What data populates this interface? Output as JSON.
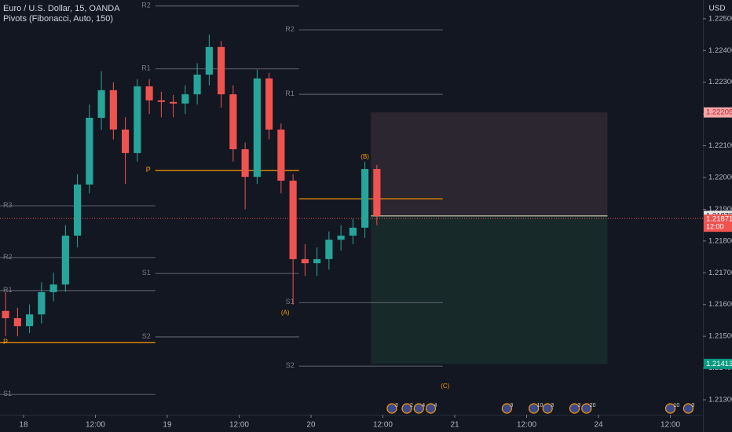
{
  "header": {
    "title": "Euro / U.S. Dollar, 15, OANDA",
    "indicator": "Pivots (Fibonacci, Auto, 150)",
    "currency": "USD"
  },
  "chart_data": {
    "type": "candlestick",
    "x": [
      -3,
      -1,
      1,
      3,
      5,
      7,
      9,
      11,
      13,
      15,
      17,
      19,
      21,
      23,
      25,
      27,
      29,
      31,
      33,
      35,
      37,
      39,
      41,
      43,
      45,
      47,
      49,
      51,
      53,
      55,
      57,
      59
    ],
    "open": [
      1.2158,
      1.21557,
      1.21532,
      1.21569,
      1.21639,
      1.21663,
      1.21817,
      1.21978,
      1.22188,
      1.22275,
      1.22151,
      1.22077,
      1.22287,
      1.22243,
      1.22238,
      1.22233,
      1.22262,
      1.22324,
      1.22411,
      1.22262,
      1.22089,
      1.22002,
      1.22312,
      1.22151,
      1.2199,
      1.21743,
      1.2173,
      1.21743,
      1.21804,
      1.21817,
      1.21842,
      1.22027
    ],
    "high": [
      1.2164,
      1.2159,
      1.216,
      1.2167,
      1.217,
      1.2185,
      1.2201,
      1.2223,
      1.22335,
      1.223,
      1.2219,
      1.2231,
      1.2231,
      1.2227,
      1.2226,
      1.2229,
      1.2236,
      1.2245,
      1.2243,
      1.2229,
      1.2211,
      1.2234,
      1.2233,
      1.2217,
      1.2201,
      1.2179,
      1.2178,
      1.2183,
      1.2185,
      1.2187,
      1.2205,
      1.2204
    ],
    "low": [
      1.215,
      1.215,
      1.2151,
      1.2154,
      1.2161,
      1.2164,
      1.2178,
      1.2195,
      1.2215,
      1.2212,
      1.2198,
      1.2205,
      1.222,
      1.2219,
      1.2219,
      1.222,
      1.2223,
      1.2229,
      1.2222,
      1.2205,
      1.219,
      1.2198,
      1.2212,
      1.2195,
      1.216,
      1.2169,
      1.2169,
      1.2171,
      1.2177,
      1.2179,
      1.2181,
      1.2185
    ],
    "close": [
      1.21557,
      1.21532,
      1.21569,
      1.21639,
      1.21663,
      1.21817,
      1.21978,
      1.22188,
      1.22275,
      1.22151,
      1.22077,
      1.22287,
      1.22243,
      1.22238,
      1.22233,
      1.22262,
      1.22324,
      1.22411,
      1.22262,
      1.22089,
      1.22002,
      1.22312,
      1.22151,
      1.2199,
      1.21743,
      1.2173,
      1.21743,
      1.21804,
      1.21817,
      1.21842,
      1.22027,
      1.21879
    ],
    "up_color": "#26a69a",
    "down_color": "#ef5350",
    "xlim": [
      -3.93,
      113.44
    ],
    "xticks": [
      {
        "value": 0,
        "label": "18"
      },
      {
        "value": 12,
        "label": "12:00"
      },
      {
        "value": 24,
        "label": "19"
      },
      {
        "value": 36,
        "label": "12:00"
      },
      {
        "value": 48,
        "label": "20"
      },
      {
        "value": 60,
        "label": "12:00"
      },
      {
        "value": 72,
        "label": "21"
      },
      {
        "value": 84,
        "label": "12:00"
      },
      {
        "value": 96,
        "label": "24"
      },
      {
        "value": 108,
        "label": "12:00"
      }
    ],
    "ylim": [
      1.21253,
      1.22559
    ],
    "yticks": [
      {
        "value": 1.225,
        "label": "1.22500"
      },
      {
        "value": 1.224,
        "label": "1.22400"
      },
      {
        "value": 1.223,
        "label": "1.22300"
      },
      {
        "value": 1.222,
        "label": "1.22200"
      },
      {
        "value": 1.221,
        "label": "1.22100"
      },
      {
        "value": 1.22,
        "label": "1.22000"
      },
      {
        "value": 1.219,
        "label": "1.21900"
      },
      {
        "value": 1.218,
        "label": "1.21800"
      },
      {
        "value": 1.217,
        "label": "1.21700"
      },
      {
        "value": 1.216,
        "label": "1.21600"
      },
      {
        "value": 1.215,
        "label": "1.21500"
      },
      {
        "value": 1.214,
        "label": "1.21400"
      },
      {
        "value": 1.213,
        "label": "1.21300"
      }
    ],
    "pivot_color": "#ff9800",
    "level_color": "#787b86",
    "pivots": [
      {
        "start": -4,
        "end": 22,
        "levels": [
          {
            "label": "R3",
            "value": 1.21911
          },
          {
            "label": "R2",
            "value": 1.21748
          },
          {
            "label": "R1",
            "value": 1.21644
          },
          {
            "label": "P",
            "value": 1.2148
          },
          {
            "label": "S1",
            "value": 1.21317
          }
        ]
      },
      {
        "start": 22,
        "end": 46,
        "levels": [
          {
            "label": "R2",
            "value": 1.2254
          },
          {
            "label": "R1",
            "value": 1.22342
          },
          {
            "label": "P",
            "value": 1.22022
          },
          {
            "label": "S1",
            "value": 1.21698
          },
          {
            "label": "S2",
            "value": 1.21498
          }
        ]
      },
      {
        "start": 46,
        "end": 70,
        "levels": [
          {
            "label": "R2",
            "value": 1.22465
          },
          {
            "label": "R1",
            "value": 1.22262
          },
          {
            "label": "P",
            "value": 1.21933
          },
          {
            "label": "S1",
            "value": 1.21606
          },
          {
            "label": "S2",
            "value": 1.21406
          }
        ]
      }
    ],
    "position": {
      "start": 58,
      "end": 97.5,
      "target": 1.22205,
      "entry": 1.21879,
      "stop": 1.21413
    },
    "current_price": 1.21871,
    "countdown": "12:00",
    "wave_labels": [
      {
        "label": "(A)",
        "x": 43.7,
        "y": 1.21574
      },
      {
        "label": "(B)",
        "x": 57,
        "y": 1.22064
      },
      {
        "label": "(C)",
        "x": 70.4,
        "y": 1.21342
      }
    ],
    "events": [
      {
        "x": 61.5,
        "label": "3"
      },
      {
        "x": 64,
        "label": "2"
      },
      {
        "x": 66,
        "label": "4"
      },
      {
        "x": 68,
        "label": "4"
      },
      {
        "x": 80.7,
        "label": "3"
      },
      {
        "x": 85.2,
        "label": "10"
      },
      {
        "x": 87.5,
        "label": "3"
      },
      {
        "x": 92,
        "label": "3"
      },
      {
        "x": 94,
        "label": "20"
      },
      {
        "x": 108,
        "label": "10"
      },
      {
        "x": 111,
        "label": "3"
      }
    ]
  }
}
